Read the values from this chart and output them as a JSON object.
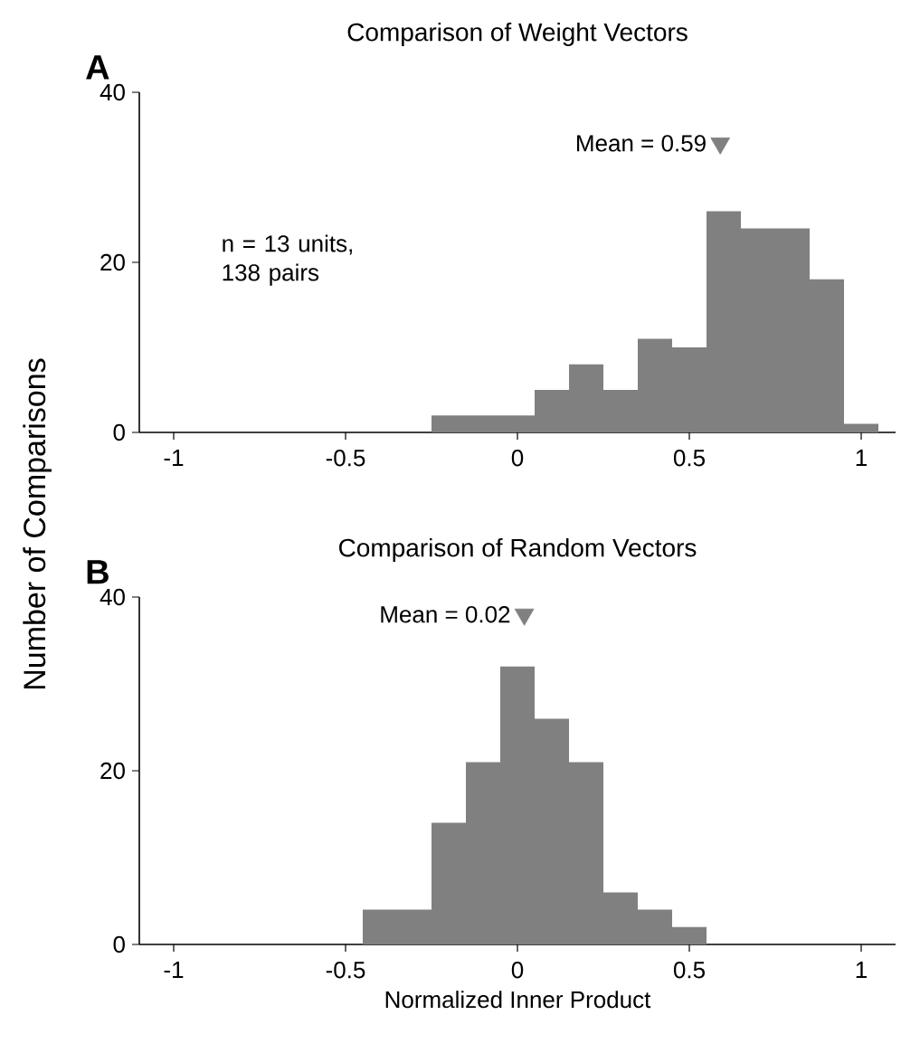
{
  "chart_data": [
    {
      "type": "histogram",
      "title": "Comparison of Weight Vectors",
      "ylabel": "Number of Comparisons",
      "color": "#808080",
      "bins": [
        -1.05,
        -0.95,
        -0.85,
        -0.75,
        -0.65,
        -0.55,
        -0.45,
        -0.35,
        -0.25,
        -0.15,
        -0.05,
        0.05,
        0.15,
        0.25,
        0.35,
        0.45,
        0.55,
        0.65,
        0.75,
        0.85,
        0.95,
        1.05
      ],
      "values": [
        0,
        0,
        0,
        0,
        0,
        0,
        0,
        0,
        2,
        2,
        2,
        5,
        8,
        5,
        11,
        10,
        26,
        24,
        24,
        18,
        1
      ],
      "xlim": [
        -1.1,
        1.1
      ],
      "xticks": [
        -1,
        -0.5,
        0,
        0.5,
        1
      ],
      "ylim": [
        0,
        40
      ],
      "yticks": [
        0,
        20,
        40
      ],
      "annotations": [
        "A",
        {
          "text": "Mean = 0.59",
          "x": 0.59,
          "y": 34
        },
        "n = 13 units, 138 pairs"
      ]
    },
    {
      "type": "histogram",
      "title": "Comparison of Random Vectors",
      "xlabel": "Normalized Inner Product",
      "color": "#808080",
      "bins": [
        -1.05,
        -0.95,
        -0.85,
        -0.75,
        -0.65,
        -0.55,
        -0.45,
        -0.35,
        -0.25,
        -0.15,
        -0.05,
        0.05,
        0.15,
        0.25,
        0.35,
        0.45,
        0.55,
        0.65,
        0.75,
        0.85,
        0.95,
        1.05
      ],
      "values": [
        0,
        0,
        0,
        0,
        0,
        0,
        4,
        4,
        14,
        21,
        32,
        26,
        21,
        6,
        4,
        2,
        0,
        0,
        0,
        0,
        0
      ],
      "xlim": [
        -1.1,
        1.1
      ],
      "xticks": [
        -1,
        -0.5,
        0,
        0.5,
        1
      ],
      "ylim": [
        0,
        40
      ],
      "yticks": [
        0,
        20,
        40
      ],
      "annotations": [
        "B",
        {
          "text": "Mean = 0.02",
          "x": 0.02,
          "y": 38
        }
      ]
    }
  ]
}
